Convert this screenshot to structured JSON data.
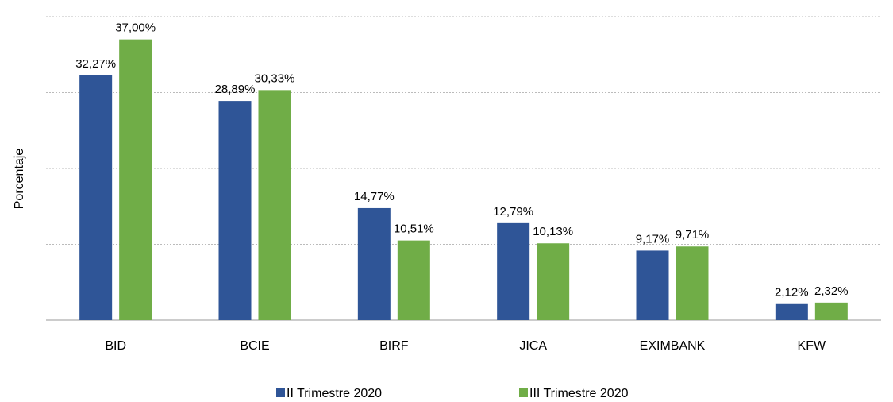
{
  "chart_data": {
    "type": "bar",
    "y_label": "Porcentaje",
    "categories": [
      "BID",
      "BCIE",
      "BIRF",
      "JICA",
      "EXIMBANK",
      "KFW"
    ],
    "series": [
      {
        "name": "II Trimestre 2020",
        "color": "#2f5597",
        "values": [
          32.27,
          28.89,
          14.77,
          12.79,
          9.17,
          2.12
        ],
        "value_labels": [
          "32,27%",
          "28,89%",
          "14,77%",
          "12,79%",
          "9,17%",
          "2,12%"
        ]
      },
      {
        "name": "III Trimestre 2020",
        "color": "#70ad47",
        "values": [
          37.0,
          30.33,
          10.51,
          10.13,
          9.71,
          2.32
        ],
        "value_labels": [
          "37,00%",
          "30,33%",
          "10,51%",
          "10,13%",
          "9,71%",
          "2,32%"
        ]
      }
    ],
    "ylim": [
      0,
      40
    ],
    "yticks": [
      0,
      10,
      20,
      30,
      40
    ],
    "grid": true,
    "legend": "bottom"
  }
}
